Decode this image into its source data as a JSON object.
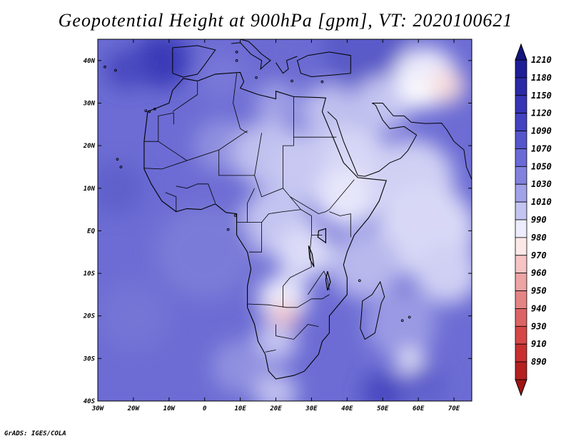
{
  "title": "Geopotential Height at 900hPa [gpm], VT: 2020100621",
  "footer": "GrADS: IGES/COLA",
  "map": {
    "lon_range": [
      -30,
      75
    ],
    "lat_range": [
      -40,
      45
    ],
    "lon_ticks": [
      {
        "value": -30,
        "label": "30W"
      },
      {
        "value": -20,
        "label": "20W"
      },
      {
        "value": -10,
        "label": "10W"
      },
      {
        "value": 0,
        "label": "0"
      },
      {
        "value": 10,
        "label": "10E"
      },
      {
        "value": 20,
        "label": "20E"
      },
      {
        "value": 30,
        "label": "30E"
      },
      {
        "value": 40,
        "label": "40E"
      },
      {
        "value": 50,
        "label": "50E"
      },
      {
        "value": 60,
        "label": "60E"
      },
      {
        "value": 70,
        "label": "70E"
      }
    ],
    "lat_ticks": [
      {
        "value": 40,
        "label": "40N"
      },
      {
        "value": 30,
        "label": "30N"
      },
      {
        "value": 20,
        "label": "20N"
      },
      {
        "value": 10,
        "label": "10N"
      },
      {
        "value": 0,
        "label": "EQ"
      },
      {
        "value": -10,
        "label": "10S"
      },
      {
        "value": -20,
        "label": "20S"
      },
      {
        "value": -30,
        "label": "30S"
      },
      {
        "value": -40,
        "label": "40S"
      }
    ]
  },
  "colorbar": {
    "levels": [
      {
        "label": "1210",
        "color": "#1e1e96"
      },
      {
        "label": "1180",
        "color": "#2a2aa6"
      },
      {
        "label": "1150",
        "color": "#3535b5"
      },
      {
        "label": "1120",
        "color": "#4343c1"
      },
      {
        "label": "1090",
        "color": "#5555cc"
      },
      {
        "label": "1070",
        "color": "#6a6ad6"
      },
      {
        "label": "1050",
        "color": "#8282de"
      },
      {
        "label": "1030",
        "color": "#a2a2e8"
      },
      {
        "label": "1010",
        "color": "#c4c4f1"
      },
      {
        "label": "990",
        "color": "#ececfc"
      },
      {
        "label": "980",
        "color": "#fde8e8"
      },
      {
        "label": "970",
        "color": "#f6c4c4"
      },
      {
        "label": "960",
        "color": "#eca4a4"
      },
      {
        "label": "950",
        "color": "#e48484"
      },
      {
        "label": "940",
        "color": "#dd6464"
      },
      {
        "label": "930",
        "color": "#d64646"
      },
      {
        "label": "910",
        "color": "#c83030"
      },
      {
        "label": "890",
        "color": "#b42020"
      }
    ],
    "top_color": "#15157f",
    "bottom_color": "#a01414"
  },
  "field": {
    "background": "#6c6cd4",
    "blobs": [
      {
        "lon": -12,
        "lat": 40,
        "r": 8,
        "color": "#3a3ab8"
      },
      {
        "lon": -22,
        "lat": 38,
        "r": 6,
        "color": "#4848c0"
      },
      {
        "lon": 5,
        "lat": 36,
        "r": 7,
        "color": "#7878d8"
      },
      {
        "lon": 22,
        "lat": 42,
        "r": 9,
        "color": "#6a6ad2"
      },
      {
        "lon": 45,
        "lat": 43,
        "r": 12,
        "color": "#5a5ac8"
      },
      {
        "lon": 20,
        "lat": 30,
        "r": 6,
        "color": "#a0a0e6"
      },
      {
        "lon": 35,
        "lat": 28,
        "r": 8,
        "color": "#c0c0ef"
      },
      {
        "lon": 50,
        "lat": 30,
        "r": 8,
        "color": "#c4c4f1"
      },
      {
        "lon": 62,
        "lat": 36,
        "r": 9,
        "color": "#ececfc"
      },
      {
        "lon": 68,
        "lat": 34,
        "r": 5,
        "color": "#f8dada"
      },
      {
        "lon": 60,
        "lat": 32,
        "r": 4,
        "color": "#ffffff"
      },
      {
        "lon": 5,
        "lat": 20,
        "r": 8,
        "color": "#9090e0"
      },
      {
        "lon": 18,
        "lat": 18,
        "r": 10,
        "color": "#c0c0ef"
      },
      {
        "lon": 28,
        "lat": 15,
        "r": 10,
        "color": "#c8c8f2"
      },
      {
        "lon": 42,
        "lat": 18,
        "r": 9,
        "color": "#d6d6f6"
      },
      {
        "lon": 40,
        "lat": 8,
        "r": 9,
        "color": "#e6e6fb"
      },
      {
        "lon": 58,
        "lat": 12,
        "r": 12,
        "color": "#d0d0f4"
      },
      {
        "lon": 62,
        "lat": 0,
        "r": 14,
        "color": "#d8d8f6"
      },
      {
        "lon": 68,
        "lat": -10,
        "r": 9,
        "color": "#d0d0f4"
      },
      {
        "lon": 20,
        "lat": 2,
        "r": 10,
        "color": "#c4c4f1"
      },
      {
        "lon": 28,
        "lat": -5,
        "r": 8,
        "color": "#dcdcf8"
      },
      {
        "lon": 45,
        "lat": -8,
        "r": 10,
        "color": "#b8b8ed"
      },
      {
        "lon": 22,
        "lat": -16,
        "r": 7,
        "color": "#ececfc"
      },
      {
        "lon": 22,
        "lat": -20,
        "r": 4,
        "color": "#f6c4c4"
      },
      {
        "lon": 24,
        "lat": -21,
        "r": 2,
        "color": "#eca4a4"
      },
      {
        "lon": 20,
        "lat": -26,
        "r": 6,
        "color": "#c4c4f1"
      },
      {
        "lon": 55,
        "lat": -22,
        "r": 10,
        "color": "#9a9ae4"
      },
      {
        "lon": 58,
        "lat": -31,
        "r": 4,
        "color": "#e6e6fb"
      },
      {
        "lon": 58,
        "lat": -31,
        "r": 1.6,
        "color": "#ffffff"
      },
      {
        "lon": 0,
        "lat": -5,
        "r": 14,
        "color": "#7a7ad8"
      },
      {
        "lon": -20,
        "lat": -20,
        "r": 10,
        "color": "#7474d6"
      },
      {
        "lon": 10,
        "lat": -32,
        "r": 8,
        "color": "#9090e0"
      },
      {
        "lon": 50,
        "lat": -38,
        "r": 6,
        "color": "#4a4ac0"
      },
      {
        "lon": 62,
        "lat": -36,
        "r": 6,
        "color": "#6060cc"
      },
      {
        "lon": 20,
        "lat": -38,
        "r": 6,
        "color": "#c0c0ef"
      },
      {
        "lon": -25,
        "lat": 10,
        "r": 8,
        "color": "#6060cc"
      }
    ]
  }
}
